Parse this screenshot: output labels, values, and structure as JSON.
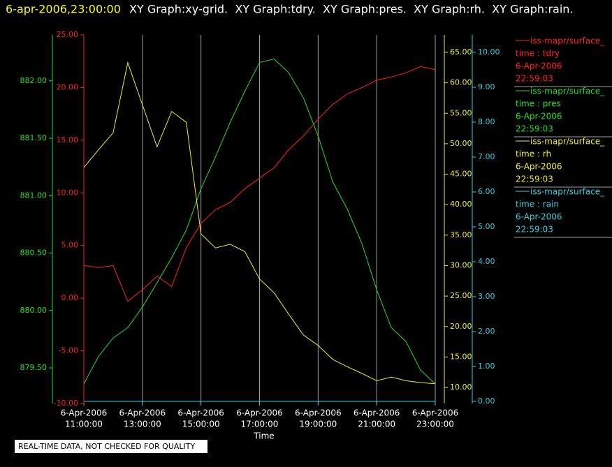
{
  "header": {
    "timestamp": "6-apr-2006,23:00:00",
    "title": "XY Graph:xy-grid.  XY Graph:tdry.  XY Graph:pres.  XY Graph:rh.  XY Graph:rain."
  },
  "footer": "REAL-TIME DATA, NOT CHECKED FOR QUALITY",
  "chart_data": {
    "type": "line",
    "xlabel": "Time",
    "grid": true,
    "xlim": [
      "6-Apr-2006 11:00:00",
      "6-Apr-2006 23:00:00"
    ],
    "xticks": [
      {
        "value": "6-Apr-2006 11:00:00",
        "label": [
          "6-Apr-2006",
          "11:00:00"
        ]
      },
      {
        "value": "6-Apr-2006 13:00:00",
        "label": [
          "6-Apr-2006",
          "13:00:00"
        ]
      },
      {
        "value": "6-Apr-2006 15:00:00",
        "label": [
          "6-Apr-2006",
          "15:00:00"
        ]
      },
      {
        "value": "6-Apr-2006 17:00:00",
        "label": [
          "6-Apr-2006",
          "17:00:00"
        ]
      },
      {
        "value": "6-Apr-2006 19:00:00",
        "label": [
          "6-Apr-2006",
          "19:00:00"
        ]
      },
      {
        "value": "6-Apr-2006 21:00:00",
        "label": [
          "6-Apr-2006",
          "21:00:00"
        ]
      },
      {
        "value": "6-Apr-2006 23:00:00",
        "label": [
          "6-Apr-2006",
          "23:00:00"
        ]
      }
    ],
    "x": [
      "6-Apr-2006 11:00:00",
      "6-Apr-2006 11:30:00",
      "6-Apr-2006 12:00:00",
      "6-Apr-2006 12:30:00",
      "6-Apr-2006 13:00:00",
      "6-Apr-2006 13:30:00",
      "6-Apr-2006 14:00:00",
      "6-Apr-2006 14:30:00",
      "6-Apr-2006 15:00:00",
      "6-Apr-2006 15:30:00",
      "6-Apr-2006 16:00:00",
      "6-Apr-2006 16:30:00",
      "6-Apr-2006 17:00:00",
      "6-Apr-2006 17:30:00",
      "6-Apr-2006 18:00:00",
      "6-Apr-2006 18:30:00",
      "6-Apr-2006 19:00:00",
      "6-Apr-2006 19:30:00",
      "6-Apr-2006 20:00:00",
      "6-Apr-2006 20:30:00",
      "6-Apr-2006 21:00:00",
      "6-Apr-2006 21:30:00",
      "6-Apr-2006 22:00:00",
      "6-Apr-2006 22:30:00",
      "6-Apr-2006 23:00:00"
    ],
    "series": [
      {
        "name": "iss-mapr/surface_",
        "label": "time : tdry",
        "date": "6-Apr-2006",
        "time": "22:59:03",
        "color": "#ff2020",
        "ylim": [
          -10,
          25
        ],
        "yticks": [
          {
            "value": -10,
            "label": "-10.00"
          },
          {
            "value": -5,
            "label": "-5.00"
          },
          {
            "value": 0,
            "label": "0.00"
          },
          {
            "value": 5,
            "label": "5.00"
          },
          {
            "value": 10,
            "label": "10.00"
          },
          {
            "value": 15,
            "label": "15.00"
          },
          {
            "value": 20,
            "label": "20.00"
          },
          {
            "value": 25,
            "label": "25.00"
          }
        ],
        "values": [
          3.1,
          2.9,
          3.1,
          -0.3,
          0.8,
          2.1,
          1.1,
          4.8,
          7.1,
          8.4,
          9.1,
          10.4,
          11.4,
          12.4,
          14.1,
          15.4,
          17.0,
          18.4,
          19.4,
          20.0,
          20.7,
          21.0,
          21.4,
          22.0,
          21.7
        ]
      },
      {
        "name": "iss-mapr/surface_",
        "label": "time : pres",
        "date": "6-Apr-2006",
        "time": "22:59:03",
        "color": "#20e020",
        "ylim": [
          879.19,
          882.4
        ],
        "yticks": [
          {
            "value": 879.5,
            "label": "879.50"
          },
          {
            "value": 880,
            "label": "880.00"
          },
          {
            "value": 880.5,
            "label": "880.50"
          },
          {
            "value": 881,
            "label": "881.00"
          },
          {
            "value": 881.5,
            "label": "881.50"
          },
          {
            "value": 882,
            "label": "882.00"
          }
        ],
        "values": [
          879.36,
          879.6,
          879.76,
          879.85,
          880.03,
          880.24,
          880.46,
          880.7,
          881.06,
          881.34,
          881.64,
          881.91,
          882.16,
          882.19,
          882.07,
          881.85,
          881.52,
          881.12,
          880.88,
          880.58,
          880.18,
          879.85,
          879.73,
          879.48,
          879.36
        ]
      },
      {
        "name": "iss-mapr/surface_",
        "label": "time : rh",
        "date": "6-Apr-2006",
        "time": "22:59:03",
        "color": "#f0f020",
        "ylim": [
          7.37,
          67.86
        ],
        "yticks": [
          {
            "value": 10,
            "label": "10.00"
          },
          {
            "value": 15,
            "label": "15.00"
          },
          {
            "value": 20,
            "label": "20.00"
          },
          {
            "value": 25,
            "label": "25.00"
          },
          {
            "value": 30,
            "label": "30.00"
          },
          {
            "value": 35,
            "label": "35.00"
          },
          {
            "value": 40,
            "label": "40.00"
          },
          {
            "value": 45,
            "label": "45.00"
          },
          {
            "value": 50,
            "label": "50.00"
          },
          {
            "value": 55,
            "label": "55.00"
          },
          {
            "value": 60,
            "label": "60.00"
          },
          {
            "value": 65,
            "label": "65.00"
          }
        ],
        "values": [
          46.1,
          49.0,
          51.8,
          63.3,
          56.4,
          49.5,
          55.3,
          53.5,
          35.2,
          32.9,
          33.5,
          32.3,
          27.8,
          25.5,
          22.0,
          18.6,
          16.9,
          14.6,
          13.4,
          12.3,
          11.1,
          11.7,
          11.1,
          10.8,
          10.6
        ]
      },
      {
        "name": "iss-mapr/surface_",
        "label": "time : rain",
        "date": "6-Apr-2006",
        "time": "22:59:03",
        "color": "#30d0e0",
        "ylim": [
          -0.06,
          10.5
        ],
        "yticks": [
          {
            "value": 0,
            "label": "0.00"
          },
          {
            "value": 1,
            "label": "1.00"
          },
          {
            "value": 2,
            "label": "2.00"
          },
          {
            "value": 3,
            "label": "3.00"
          },
          {
            "value": 4,
            "label": "4.00"
          },
          {
            "value": 5,
            "label": "5.00"
          },
          {
            "value": 6,
            "label": "6.00"
          },
          {
            "value": 7,
            "label": "7.00"
          },
          {
            "value": 8,
            "label": "8.00"
          },
          {
            "value": 9,
            "label": "9.00"
          },
          {
            "value": 10,
            "label": "10.00"
          }
        ],
        "values": [
          0,
          0,
          0,
          0,
          0,
          0,
          0,
          0,
          0,
          0,
          0,
          0,
          0,
          0,
          0,
          0,
          0,
          0,
          0,
          0,
          0,
          0,
          0,
          0,
          0
        ]
      }
    ]
  }
}
